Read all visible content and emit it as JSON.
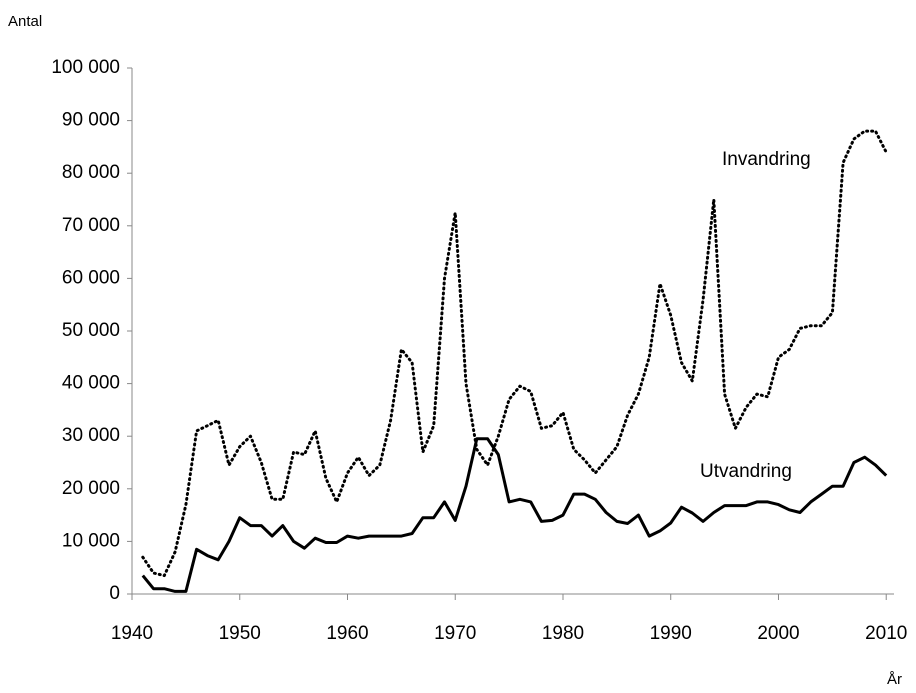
{
  "chart_data": {
    "type": "line",
    "y_label": "Antal",
    "x_label": "År",
    "x": [
      1941,
      1942,
      1943,
      1944,
      1945,
      1946,
      1947,
      1948,
      1949,
      1950,
      1951,
      1952,
      1953,
      1954,
      1955,
      1956,
      1957,
      1958,
      1959,
      1960,
      1961,
      1962,
      1963,
      1964,
      1965,
      1966,
      1967,
      1968,
      1969,
      1970,
      1971,
      1972,
      1973,
      1974,
      1975,
      1976,
      1977,
      1978,
      1979,
      1980,
      1981,
      1982,
      1983,
      1984,
      1985,
      1986,
      1987,
      1988,
      1989,
      1990,
      1991,
      1992,
      1993,
      1994,
      1995,
      1996,
      1997,
      1998,
      1999,
      2000,
      2001,
      2002,
      2003,
      2004,
      2005,
      2006,
      2007,
      2008,
      2009,
      2010
    ],
    "series": [
      {
        "name": "Invandring",
        "color": "#000000",
        "style": "dotted",
        "values": [
          7000,
          4000,
          3500,
          8000,
          17000,
          31000,
          32000,
          33000,
          24500,
          28000,
          30000,
          25000,
          18000,
          18000,
          27000,
          26500,
          31000,
          22000,
          17500,
          23000,
          26000,
          22500,
          24500,
          33000,
          46500,
          44000,
          27000,
          32000,
          60000,
          72500,
          40000,
          27500,
          24500,
          30000,
          37000,
          39500,
          38500,
          31500,
          32000,
          34500,
          27500,
          25500,
          23000,
          25500,
          28000,
          34000,
          38000,
          45000,
          59000,
          53000,
          44000,
          40500,
          56000,
          75000,
          38000,
          31500,
          35500,
          38000,
          37500,
          45000,
          46500,
          50500,
          51000,
          51000,
          53500,
          82000,
          86500,
          88000,
          88000,
          84000
        ]
      },
      {
        "name": "Utvandring",
        "color": "#000000",
        "style": "solid",
        "values": [
          3500,
          1000,
          1000,
          500,
          500,
          8500,
          7300,
          6500,
          10000,
          14500,
          13000,
          13000,
          11000,
          13000,
          10000,
          8700,
          10600,
          9800,
          9800,
          11000,
          10600,
          11000,
          11000,
          11000,
          11000,
          11500,
          14500,
          14500,
          17500,
          14000,
          20500,
          29500,
          29500,
          26500,
          17500,
          18000,
          17500,
          13800,
          14000,
          15000,
          19000,
          19000,
          18000,
          15500,
          13800,
          13400,
          15000,
          11000,
          12000,
          13500,
          16500,
          15400,
          13800,
          15500,
          16800,
          16800,
          16800,
          17500,
          17500,
          17000,
          16000,
          15500,
          17500,
          19000,
          20500,
          20500,
          25000,
          26000,
          24500,
          22500
        ]
      }
    ],
    "xlim": [
      1940,
      2011
    ],
    "xticks": [
      1940,
      1950,
      1960,
      1970,
      1980,
      1990,
      2000,
      2010
    ],
    "ylim": [
      0,
      100000
    ],
    "yticks": [
      0,
      {
        "value": 10000,
        "label": "10 000"
      },
      {
        "value": 20000,
        "label": "20 000"
      },
      {
        "value": 30000,
        "label": "30 000"
      },
      {
        "value": 40000,
        "label": "40 000"
      },
      {
        "value": 50000,
        "label": "50 000"
      },
      {
        "value": 60000,
        "label": "60 000"
      },
      {
        "value": 70000,
        "label": "70 000"
      },
      {
        "value": 80000,
        "label": "80 000"
      },
      {
        "value": 90000,
        "label": "90 000"
      },
      {
        "value": 100000,
        "label": "100 000"
      }
    ],
    "grid": false
  }
}
